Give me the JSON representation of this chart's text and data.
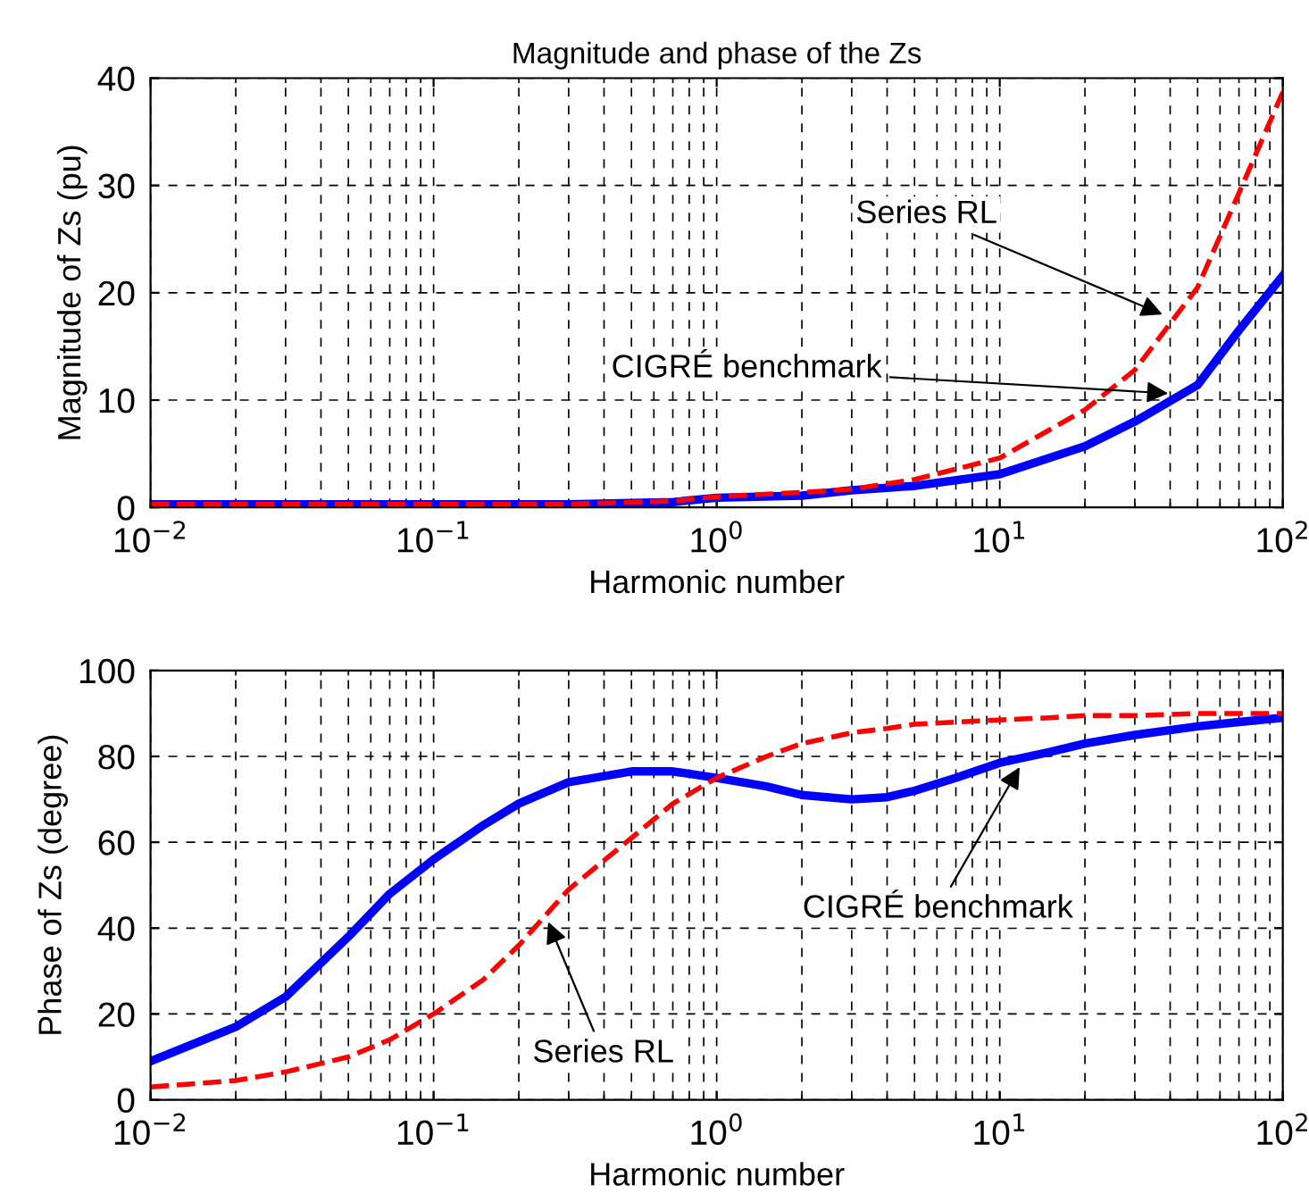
{
  "chart_data": [
    {
      "type": "line",
      "title": "Magnitude and phase of the Zs",
      "xlabel": "Harmonic number",
      "ylabel": "Magnitude of Zs (pu)",
      "log": "x",
      "grid": true,
      "xlim": [
        0.01,
        100
      ],
      "xticks": [
        {
          "value": 0.01,
          "label": "10$^{−2}$"
        },
        {
          "value": 0.1,
          "label": "10$^{−1}$"
        },
        {
          "value": 1,
          "label": "10$^{0}$"
        },
        {
          "value": 10,
          "label": "10$^{1}$"
        },
        {
          "value": 100,
          "label": "10$^{2}$"
        }
      ],
      "ylim": [
        0,
        40
      ],
      "yticks": [
        0,
        10,
        20,
        30,
        40
      ],
      "x": [
        0.01,
        0.03,
        0.1,
        0.3,
        0.7,
        1,
        2,
        3,
        5,
        10,
        20,
        30,
        50,
        70,
        100
      ],
      "series": [
        {
          "color": "#0000ff",
          "line_style": "solid",
          "values": [
            0.3,
            0.3,
            0.3,
            0.3,
            0.5,
            0.9,
            1.1,
            1.6,
            2.0,
            3.1,
            5.7,
            8.0,
            11.4,
            16.5,
            21.6
          ]
        },
        {
          "color": "#ff0000",
          "line_style": "dashed",
          "values": [
            0.3,
            0.3,
            0.3,
            0.3,
            0.6,
            1.0,
            1.4,
            1.7,
            2.6,
            4.6,
            9.1,
            12.8,
            20.5,
            29.3,
            38.7
          ]
        }
      ],
      "annotations": [
        {
          "text": "Series RL",
          "x": 39,
          "y": 17.8
        },
        {
          "text": "CIGRÉ benchmark",
          "x": 41,
          "y": 10.6
        }
      ]
    },
    {
      "type": "line",
      "xlabel": "Harmonic number",
      "ylabel": "Phase of Zs (degree)",
      "log": "x",
      "grid": true,
      "xlim": [
        0.01,
        100
      ],
      "xticks": [
        {
          "value": 0.01,
          "label": "10$^{−2}$"
        },
        {
          "value": 0.1,
          "label": "10$^{−1}$"
        },
        {
          "value": 1,
          "label": "10$^{0}$"
        },
        {
          "value": 10,
          "label": "10$^{1}$"
        },
        {
          "value": 100,
          "label": "10$^{2}$"
        }
      ],
      "ylim": [
        0,
        100
      ],
      "yticks": [
        0,
        20,
        40,
        60,
        80,
        100
      ],
      "x": [
        0.01,
        0.02,
        0.03,
        0.05,
        0.07,
        0.1,
        0.15,
        0.2,
        0.3,
        0.5,
        0.7,
        1,
        1.5,
        2,
        3,
        4,
        5,
        7,
        10,
        15,
        20,
        30,
        50,
        70,
        100
      ],
      "series": [
        {
          "color": "#0000ff",
          "line_style": "solid",
          "values": [
            9,
            17,
            24,
            38,
            48,
            56,
            64,
            69,
            74,
            76.5,
            76.5,
            75,
            73,
            71,
            70,
            70.5,
            72,
            75,
            78.5,
            81,
            83,
            85,
            87,
            88,
            89
          ]
        },
        {
          "color": "#ff0000",
          "line_style": "dashed",
          "values": [
            3,
            4.5,
            6.5,
            10,
            14,
            20,
            28,
            36,
            49,
            61,
            69,
            75,
            80,
            83,
            85.5,
            86.5,
            87.5,
            88,
            88.5,
            89,
            89.5,
            89.5,
            90,
            90,
            90
          ]
        }
      ],
      "annotations": [
        {
          "text": "Series RL",
          "x": 0.25,
          "y": 42.5
        },
        {
          "text": "CIGRÉ benchmark",
          "x": 12,
          "y": 78.5
        }
      ]
    }
  ]
}
